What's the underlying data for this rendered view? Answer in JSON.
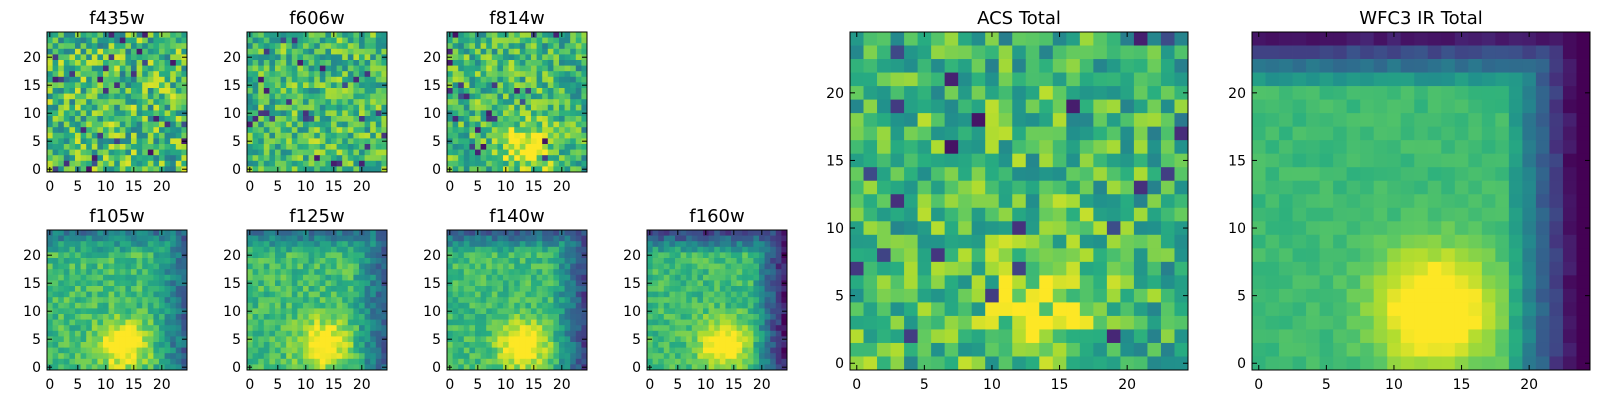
{
  "chart_data": {
    "type": "heatmap",
    "colormap": "viridis",
    "grid": false,
    "panels": [
      {
        "title": "f435w",
        "size": 25,
        "xticks": [
          0,
          5,
          10,
          15,
          20
        ],
        "yticks": [
          0,
          5,
          10,
          15,
          20
        ],
        "blob": {
          "center": [
            14,
            4
          ],
          "strength": 0.0
        },
        "noise": 0.55,
        "edge_dim": 0.0,
        "seed": 11
      },
      {
        "title": "f606w",
        "size": 25,
        "xticks": [
          0,
          5,
          10,
          15,
          20
        ],
        "yticks": [
          0,
          5,
          10,
          15,
          20
        ],
        "blob": {
          "center": [
            14,
            4
          ],
          "strength": 0.05
        },
        "noise": 0.45,
        "edge_dim": 0.0,
        "seed": 23
      },
      {
        "title": "f814w",
        "size": 25,
        "xticks": [
          0,
          5,
          10,
          15,
          20
        ],
        "yticks": [
          0,
          5,
          10,
          15,
          20
        ],
        "blob": {
          "center": [
            14,
            4
          ],
          "strength": 0.35
        },
        "noise": 0.45,
        "edge_dim": 0.05,
        "seed": 37
      },
      {
        "title": "f105w",
        "size": 25,
        "xticks": [
          0,
          5,
          10,
          15,
          20
        ],
        "yticks": [
          0,
          5,
          10,
          15,
          20
        ],
        "blob": {
          "center": [
            13,
            4
          ],
          "strength": 0.45
        },
        "noise": 0.25,
        "edge_dim": 0.35,
        "seed": 41
      },
      {
        "title": "f125w",
        "size": 25,
        "xticks": [
          0,
          5,
          10,
          15,
          20
        ],
        "yticks": [
          0,
          5,
          10,
          15,
          20
        ],
        "blob": {
          "center": [
            13,
            4
          ],
          "strength": 0.45
        },
        "noise": 0.25,
        "edge_dim": 0.35,
        "seed": 53
      },
      {
        "title": "f140w",
        "size": 25,
        "xticks": [
          0,
          5,
          10,
          15,
          20
        ],
        "yticks": [
          0,
          5,
          10,
          15,
          20
        ],
        "blob": {
          "center": [
            13,
            4
          ],
          "strength": 0.45
        },
        "noise": 0.22,
        "edge_dim": 0.45,
        "seed": 67
      },
      {
        "title": "f160w",
        "size": 25,
        "xticks": [
          0,
          5,
          10,
          15,
          20
        ],
        "yticks": [
          0,
          5,
          10,
          15,
          20
        ],
        "blob": {
          "center": [
            13,
            4
          ],
          "strength": 0.45
        },
        "noise": 0.22,
        "edge_dim": 0.6,
        "seed": 71
      },
      {
        "title": "ACS Total",
        "size": 25,
        "xticks": [
          0,
          5,
          10,
          15,
          20
        ],
        "yticks": [
          0,
          5,
          10,
          15,
          20
        ],
        "blob": {
          "center": [
            14,
            4
          ],
          "strength": 0.25
        },
        "noise": 0.45,
        "edge_dim": 0.05,
        "seed": 83
      },
      {
        "title": "WFC3 IR Total",
        "size": 25,
        "xticks": [
          0,
          5,
          10,
          15,
          20
        ],
        "yticks": [
          0,
          5,
          10,
          15,
          20
        ],
        "blob": {
          "center": [
            13,
            4
          ],
          "strength": 0.5
        },
        "noise": 0.08,
        "edge_dim": 0.75,
        "seed": 97
      }
    ]
  }
}
